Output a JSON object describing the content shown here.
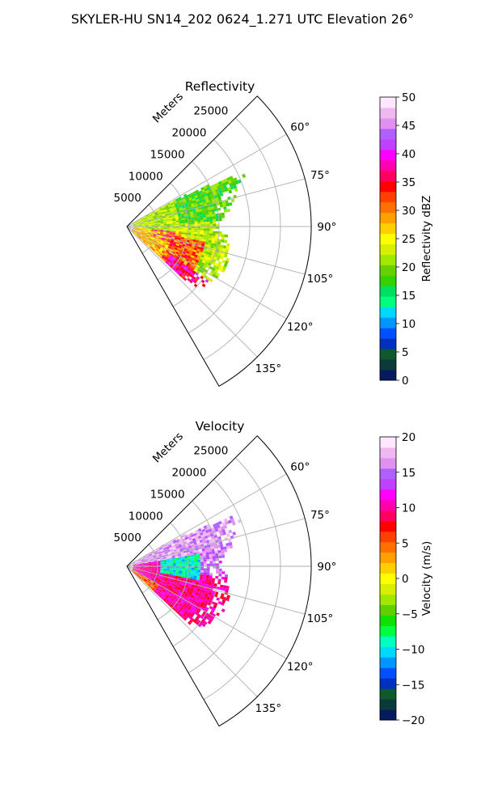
{
  "figure": {
    "title": "SKYLER-HU  SN14_202  0624_1.271 UTC Elevation 26°"
  },
  "colors": {
    "grid": "#b0b0b0",
    "axis": "#000000",
    "ref_cmap": [
      "#061a5e",
      "#0c3a3a",
      "#0f5a2c",
      "#0030c0",
      "#0050ff",
      "#0096ff",
      "#00d8ff",
      "#00ff80",
      "#00e060",
      "#33d200",
      "#66d000",
      "#a0e800",
      "#d8f000",
      "#ffff00",
      "#ffd000",
      "#ffa000",
      "#ff7000",
      "#ff4000",
      "#ff0000",
      "#ff0060",
      "#ff00b0",
      "#ff00ff",
      "#c040ff",
      "#b060ff",
      "#e090f0",
      "#f0b8f0",
      "#ffe8ff"
    ],
    "vel_cmap": [
      "#061a5e",
      "#0c3a3a",
      "#0f5a2c",
      "#0030c0",
      "#0050ff",
      "#0096ff",
      "#00d8ff",
      "#00ffc0",
      "#00ff40",
      "#10e000",
      "#60d000",
      "#a0e800",
      "#d8f000",
      "#ffff00",
      "#ffd000",
      "#ffa000",
      "#ff7000",
      "#ff4000",
      "#ff0000",
      "#ff0060",
      "#ff00b0",
      "#ff00ff",
      "#c040ff",
      "#b060ff",
      "#e090f0",
      "#f0b8f0",
      "#ffe8ff"
    ]
  },
  "chart_data": [
    {
      "type": "polar-ppi",
      "title": "Reflectivity",
      "radial_axis_label": "Meters",
      "radial_ticks": [
        5000,
        10000,
        15000,
        20000,
        25000
      ],
      "radial_tick_labels": [
        "5000",
        "10000",
        "15000",
        "20000",
        "25000"
      ],
      "r_max": 30000,
      "theta_range_deg": [
        45,
        150
      ],
      "theta_ticks": [
        60,
        75,
        90,
        105,
        120,
        135
      ],
      "theta_tick_labels": [
        "60°",
        "75°",
        "90°",
        "105°",
        "120°",
        "135°"
      ],
      "colorbar": {
        "label": "Reflectivity dBZ",
        "range": [
          0,
          50
        ],
        "ticks": [
          0,
          5,
          10,
          15,
          20,
          25,
          30,
          35,
          40,
          45,
          50
        ],
        "tick_labels": [
          "0",
          "5",
          "10",
          "15",
          "20",
          "25",
          "30",
          "35",
          "40",
          "45",
          "50"
        ]
      },
      "field": "reflectivity",
      "echo_extent_m": [
        {
          "az": 58,
          "r": 0
        },
        {
          "az": 62,
          "r": 12000
        },
        {
          "az": 66,
          "r": 21000
        },
        {
          "az": 70,
          "r": 19000
        },
        {
          "az": 75,
          "r": 18000
        },
        {
          "az": 80,
          "r": 17000
        },
        {
          "az": 85,
          "r": 15500
        },
        {
          "az": 90,
          "r": 14500
        },
        {
          "az": 95,
          "r": 16000
        },
        {
          "az": 100,
          "r": 16500
        },
        {
          "az": 105,
          "r": 17000
        },
        {
          "az": 110,
          "r": 17500
        },
        {
          "az": 115,
          "r": 17000
        },
        {
          "az": 120,
          "r": 16500
        },
        {
          "az": 125,
          "r": 16000
        },
        {
          "az": 130,
          "r": 15000
        },
        {
          "az": 133,
          "r": 13500
        }
      ],
      "typical_values_dbz": {
        "near_range": 25,
        "core_max": 40,
        "outer_edge": 18
      }
    },
    {
      "type": "polar-ppi",
      "title": "Velocity",
      "radial_axis_label": "Meters",
      "radial_ticks": [
        5000,
        10000,
        15000,
        20000,
        25000
      ],
      "radial_tick_labels": [
        "5000",
        "10000",
        "15000",
        "20000",
        "25000"
      ],
      "r_max": 30000,
      "theta_range_deg": [
        45,
        150
      ],
      "theta_ticks": [
        60,
        75,
        90,
        105,
        120,
        135
      ],
      "theta_tick_labels": [
        "60°",
        "75°",
        "90°",
        "105°",
        "120°",
        "135°"
      ],
      "colorbar": {
        "label": "Velocity (m/s)",
        "range": [
          -20,
          20
        ],
        "ticks": [
          -20,
          -15,
          -10,
          -5,
          0,
          5,
          10,
          15,
          20
        ],
        "tick_labels": [
          "−20",
          "−15",
          "−10",
          "−5",
          "0",
          "5",
          "10",
          "15",
          "20"
        ]
      },
      "field": "velocity",
      "echo_extent_m": [
        {
          "az": 58,
          "r": 0
        },
        {
          "az": 62,
          "r": 12000
        },
        {
          "az": 66,
          "r": 21000
        },
        {
          "az": 70,
          "r": 19000
        },
        {
          "az": 75,
          "r": 18000
        },
        {
          "az": 80,
          "r": 17000
        },
        {
          "az": 85,
          "r": 15500
        },
        {
          "az": 90,
          "r": 14500
        },
        {
          "az": 95,
          "r": 16000
        },
        {
          "az": 100,
          "r": 16500
        },
        {
          "az": 105,
          "r": 17000
        },
        {
          "az": 110,
          "r": 17500
        },
        {
          "az": 115,
          "r": 17000
        },
        {
          "az": 120,
          "r": 16500
        },
        {
          "az": 125,
          "r": 16000
        },
        {
          "az": 130,
          "r": 15000
        },
        {
          "az": 133,
          "r": 13500
        }
      ],
      "typical_values_ms": {
        "north_band": 15,
        "center": -12,
        "south_region": 8
      }
    }
  ]
}
